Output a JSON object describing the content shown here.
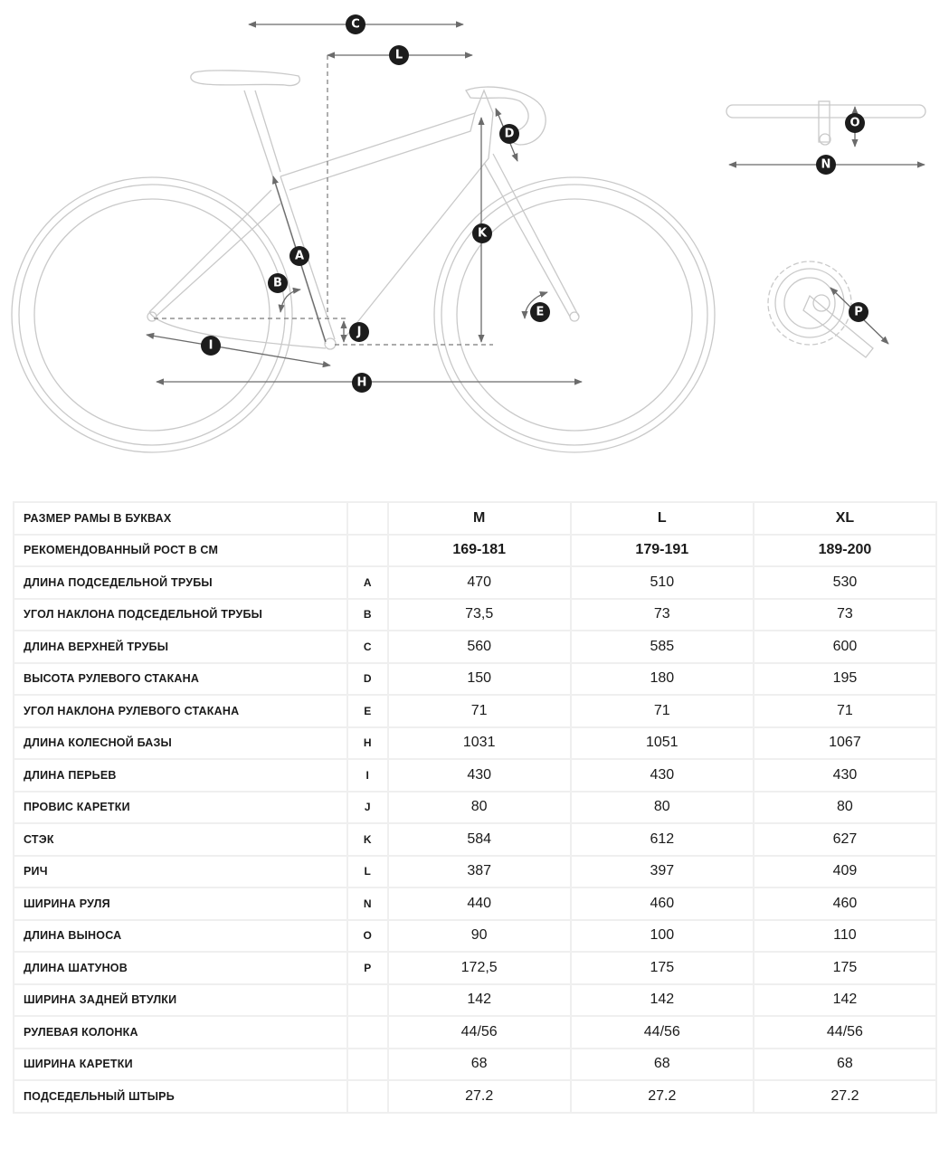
{
  "diagram": {
    "labels": [
      "C",
      "L",
      "D",
      "K",
      "A",
      "B",
      "J",
      "E",
      "I",
      "H",
      "O",
      "N",
      "P"
    ]
  },
  "table": {
    "header": {
      "label": "РАЗМЕР РАМЫ В БУКВАХ",
      "letter": "",
      "values": [
        "M",
        "L",
        "XL"
      ]
    },
    "rows": [
      {
        "label": "РЕКОМЕНДОВАННЫЙ РОСТ В СМ",
        "letter": "",
        "values": [
          "169-181",
          "179-191",
          "189-200"
        ],
        "bold": true
      },
      {
        "label": "ДЛИНА ПОДСЕДЕЛЬНОЙ ТРУБЫ",
        "letter": "A",
        "values": [
          "470",
          "510",
          "530"
        ]
      },
      {
        "label": "УГОЛ НАКЛОНА ПОДСЕДЕЛЬНОЙ ТРУБЫ",
        "letter": "B",
        "values": [
          "73,5",
          "73",
          "73"
        ]
      },
      {
        "label": "ДЛИНА ВЕРХНЕЙ ТРУБЫ",
        "letter": "C",
        "values": [
          "560",
          "585",
          "600"
        ]
      },
      {
        "label": "ВЫСОТА РУЛЕВОГО СТАКАНА",
        "letter": "D",
        "values": [
          "150",
          "180",
          "195"
        ]
      },
      {
        "label": "УГОЛ НАКЛОНА РУЛЕВОГО СТАКАНА",
        "letter": "E",
        "values": [
          "71",
          "71",
          "71"
        ]
      },
      {
        "label": "ДЛИНА КОЛЕСНОЙ БАЗЫ",
        "letter": "H",
        "values": [
          "1031",
          "1051",
          "1067"
        ]
      },
      {
        "label": "ДЛИНА ПЕРЬЕВ",
        "letter": "I",
        "values": [
          "430",
          "430",
          "430"
        ]
      },
      {
        "label": "ПРОВИС КАРЕТКИ",
        "letter": "J",
        "values": [
          "80",
          "80",
          "80"
        ]
      },
      {
        "label": "СТЭК",
        "letter": "K",
        "values": [
          "584",
          "612",
          "627"
        ]
      },
      {
        "label": "РИЧ",
        "letter": "L",
        "values": [
          "387",
          "397",
          "409"
        ]
      },
      {
        "label": "ШИРИНА РУЛЯ",
        "letter": "N",
        "values": [
          "440",
          "460",
          "460"
        ]
      },
      {
        "label": "ДЛИНА ВЫНОСА",
        "letter": "O",
        "values": [
          "90",
          "100",
          "110"
        ]
      },
      {
        "label": "ДЛИНА ШАТУНОВ",
        "letter": "P",
        "values": [
          "172,5",
          "175",
          "175"
        ]
      },
      {
        "label": "ШИРИНА ЗАДНЕЙ ВТУЛКИ",
        "letter": "",
        "values": [
          "142",
          "142",
          "142"
        ]
      },
      {
        "label": "РУЛЕВАЯ КОЛОНКА",
        "letter": "",
        "values": [
          "44/56",
          "44/56",
          "44/56"
        ]
      },
      {
        "label": "ШИРИНА КАРЕТКИ",
        "letter": "",
        "values": [
          "68",
          "68",
          "68"
        ]
      },
      {
        "label": "ПОДСЕДЕЛЬНЫЙ ШТЫРЬ",
        "letter": "",
        "values": [
          "27.2",
          "27.2",
          "27.2"
        ]
      }
    ]
  }
}
